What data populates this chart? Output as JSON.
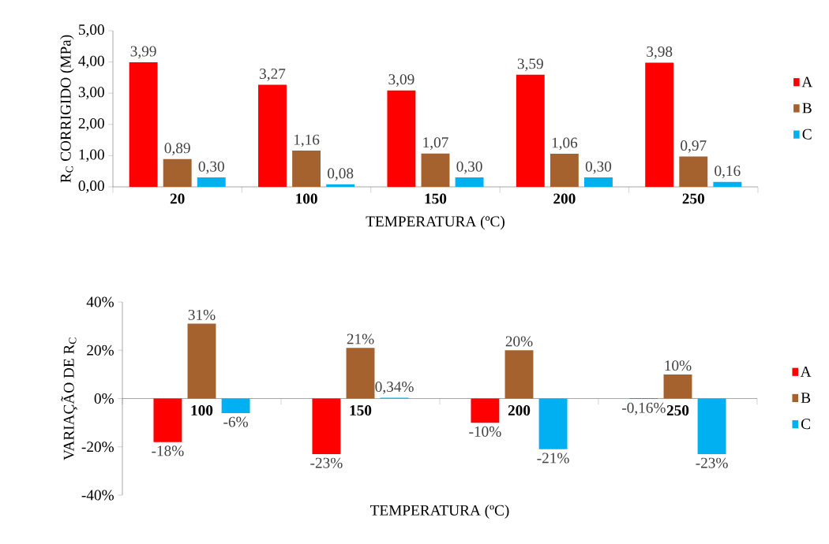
{
  "chart_data": [
    {
      "type": "bar",
      "ylabel": "R$_{C}$ CORRIGIDO (MPa)",
      "xlabel": "TEMPERATURA (ºC)",
      "categories": [
        "20",
        "100",
        "150",
        "200",
        "250"
      ],
      "ylim": [
        0,
        5
      ],
      "yticks": [
        {
          "value": 0,
          "label": "0,00"
        },
        {
          "value": 1,
          "label": "1,00"
        },
        {
          "value": 2,
          "label": "2,00"
        },
        {
          "value": 3,
          "label": "3,00"
        },
        {
          "value": 4,
          "label": "4,00"
        },
        {
          "value": 5,
          "label": "5,00"
        }
      ],
      "legend": "right",
      "series": [
        {
          "name": "A",
          "color": "#ff0000",
          "values": [
            3.99,
            3.27,
            3.09,
            3.59,
            3.98
          ],
          "value_labels": [
            "3,99",
            "3,27",
            "3,09",
            "3,59",
            "3,98"
          ]
        },
        {
          "name": "B",
          "color": "#a5622e",
          "values": [
            0.89,
            1.16,
            1.07,
            1.06,
            0.97
          ],
          "value_labels": [
            "0,89",
            "1,16",
            "1,07",
            "1,06",
            "0,97"
          ]
        },
        {
          "name": "C",
          "color": "#00b0f0",
          "values": [
            0.3,
            0.08,
            0.3,
            0.3,
            0.16
          ],
          "value_labels": [
            "0,30",
            "0,08",
            "0,30",
            "0,30",
            "0,16"
          ]
        }
      ]
    },
    {
      "type": "bar",
      "ylabel": "VARIAÇÃO DE R$_{C}$",
      "xlabel": "TEMPERATURA (ºC)",
      "categories": [
        "100",
        "150",
        "200",
        "250"
      ],
      "ylim": [
        -40,
        40
      ],
      "yticks": [
        {
          "value": -40,
          "label": "-40%"
        },
        {
          "value": -20,
          "label": "-20%"
        },
        {
          "value": 0,
          "label": "0%"
        },
        {
          "value": 20,
          "label": "20%"
        },
        {
          "value": 40,
          "label": "40%"
        }
      ],
      "legend": "right",
      "series": [
        {
          "name": "A",
          "color": "#ff0000",
          "values": [
            -18,
            -23,
            -10,
            -0.16
          ],
          "value_labels": [
            "-18%",
            "-23%",
            "-10%",
            "-0,16%"
          ]
        },
        {
          "name": "B",
          "color": "#a5622e",
          "values": [
            31,
            21,
            20,
            10
          ],
          "value_labels": [
            "31%",
            "21%",
            "20%",
            "10%"
          ]
        },
        {
          "name": "C",
          "color": "#00b0f0",
          "values": [
            -6,
            0.34,
            -21,
            -23
          ],
          "value_labels": [
            "-6%",
            "0,34%",
            "-21%",
            "-23%"
          ]
        }
      ]
    }
  ]
}
